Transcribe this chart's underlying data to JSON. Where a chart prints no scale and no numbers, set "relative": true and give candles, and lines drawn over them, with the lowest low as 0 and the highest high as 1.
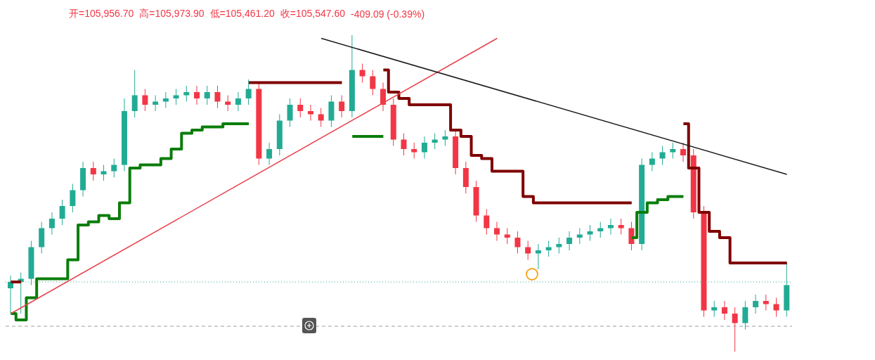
{
  "chart_data": {
    "type": "candlestick",
    "relative": true,
    "annotations": [
      "开=105,956.70",
      "高=105,973.90",
      "低=105,461.20",
      "收=105,547.60",
      "-409.09 (-0.39%)"
    ],
    "categories": [
      null,
      null,
      null,
      null,
      null,
      null,
      null,
      null,
      null,
      null,
      null,
      null,
      null,
      null,
      null,
      null,
      null,
      null,
      null,
      null,
      null,
      null,
      null,
      null,
      null,
      null,
      null,
      null,
      null,
      null,
      null,
      null,
      null,
      null,
      null,
      null,
      null,
      null,
      null,
      null,
      null,
      null,
      null,
      null,
      null,
      null,
      null,
      null,
      null,
      null,
      null,
      null,
      null,
      null,
      null,
      null,
      null,
      null,
      null,
      null,
      null,
      null,
      null,
      null,
      null,
      null,
      null,
      null,
      null,
      null,
      null,
      null,
      null,
      null,
      null,
      null
    ],
    "ohlc": [
      [
        0.2,
        0.24,
        0.12,
        0.22
      ],
      [
        0.22,
        0.25,
        0.12,
        0.23
      ],
      [
        0.23,
        0.35,
        0.21,
        0.33
      ],
      [
        0.33,
        0.41,
        0.31,
        0.39
      ],
      [
        0.39,
        0.44,
        0.37,
        0.42
      ],
      [
        0.42,
        0.48,
        0.4,
        0.46
      ],
      [
        0.46,
        0.53,
        0.44,
        0.51
      ],
      [
        0.51,
        0.6,
        0.49,
        0.58
      ],
      [
        0.58,
        0.6,
        0.54,
        0.56
      ],
      [
        0.56,
        0.59,
        0.54,
        0.57
      ],
      [
        0.57,
        0.61,
        0.55,
        0.59
      ],
      [
        0.59,
        0.8,
        0.57,
        0.76
      ],
      [
        0.76,
        0.89,
        0.74,
        0.81
      ],
      [
        0.81,
        0.83,
        0.76,
        0.78
      ],
      [
        0.78,
        0.81,
        0.76,
        0.79
      ],
      [
        0.79,
        0.82,
        0.77,
        0.8
      ],
      [
        0.8,
        0.83,
        0.78,
        0.81
      ],
      [
        0.81,
        0.84,
        0.79,
        0.82
      ],
      [
        0.82,
        0.84,
        0.78,
        0.8
      ],
      [
        0.8,
        0.84,
        0.78,
        0.82
      ],
      [
        0.82,
        0.84,
        0.77,
        0.79
      ],
      [
        0.79,
        0.81,
        0.76,
        0.78
      ],
      [
        0.78,
        0.82,
        0.76,
        0.8
      ],
      [
        0.8,
        0.86,
        0.78,
        0.83
      ],
      [
        0.83,
        0.85,
        0.59,
        0.61
      ],
      [
        0.61,
        0.66,
        0.59,
        0.64
      ],
      [
        0.64,
        0.75,
        0.62,
        0.73
      ],
      [
        0.73,
        0.8,
        0.71,
        0.78
      ],
      [
        0.78,
        0.8,
        0.74,
        0.76
      ],
      [
        0.76,
        0.78,
        0.73,
        0.75
      ],
      [
        0.75,
        0.77,
        0.71,
        0.73
      ],
      [
        0.73,
        0.81,
        0.71,
        0.79
      ],
      [
        0.79,
        0.81,
        0.74,
        0.76
      ],
      [
        0.76,
        1.0,
        0.74,
        0.89
      ],
      [
        0.89,
        0.91,
        0.85,
        0.87
      ],
      [
        0.87,
        0.89,
        0.81,
        0.83
      ],
      [
        0.83,
        0.85,
        0.76,
        0.78
      ],
      [
        0.78,
        0.8,
        0.65,
        0.67
      ],
      [
        0.67,
        0.69,
        0.62,
        0.64
      ],
      [
        0.64,
        0.66,
        0.61,
        0.63
      ],
      [
        0.63,
        0.68,
        0.61,
        0.66
      ],
      [
        0.66,
        0.69,
        0.64,
        0.67
      ],
      [
        0.67,
        0.7,
        0.65,
        0.68
      ],
      [
        0.68,
        0.7,
        0.56,
        0.58
      ],
      [
        0.58,
        0.6,
        0.5,
        0.52
      ],
      [
        0.52,
        0.54,
        0.41,
        0.43
      ],
      [
        0.43,
        0.45,
        0.37,
        0.39
      ],
      [
        0.39,
        0.41,
        0.35,
        0.37
      ],
      [
        0.37,
        0.39,
        0.34,
        0.36
      ],
      [
        0.36,
        0.38,
        0.31,
        0.33
      ],
      [
        0.33,
        0.35,
        0.29,
        0.31
      ],
      [
        0.31,
        0.34,
        0.26,
        0.32
      ],
      [
        0.32,
        0.35,
        0.3,
        0.33
      ],
      [
        0.33,
        0.36,
        0.31,
        0.34
      ],
      [
        0.34,
        0.38,
        0.32,
        0.36
      ],
      [
        0.36,
        0.39,
        0.34,
        0.37
      ],
      [
        0.37,
        0.4,
        0.35,
        0.38
      ],
      [
        0.38,
        0.41,
        0.36,
        0.39
      ],
      [
        0.39,
        0.42,
        0.37,
        0.4
      ],
      [
        0.4,
        0.42,
        0.37,
        0.39
      ],
      [
        0.39,
        0.41,
        0.32,
        0.34
      ],
      [
        0.34,
        0.61,
        0.32,
        0.59
      ],
      [
        0.59,
        0.63,
        0.57,
        0.61
      ],
      [
        0.61,
        0.65,
        0.59,
        0.63
      ],
      [
        0.63,
        0.66,
        0.61,
        0.64
      ],
      [
        0.64,
        0.66,
        0.6,
        0.62
      ],
      [
        0.62,
        0.64,
        0.42,
        0.44
      ],
      [
        0.44,
        0.46,
        0.11,
        0.13
      ],
      [
        0.13,
        0.16,
        0.11,
        0.14
      ],
      [
        0.14,
        0.16,
        0.1,
        0.12
      ],
      [
        0.12,
        0.14,
        0.0,
        0.09
      ],
      [
        0.09,
        0.16,
        0.07,
        0.14
      ],
      [
        0.14,
        0.18,
        0.12,
        0.16
      ],
      [
        0.16,
        0.18,
        0.13,
        0.15
      ],
      [
        0.15,
        0.17,
        0.11,
        0.13
      ],
      [
        0.13,
        0.28,
        0.11,
        0.21
      ]
    ],
    "colors": [
      "#22ab94",
      "#22ab94",
      "#22ab94",
      "#22ab94",
      "#22ab94",
      "#22ab94",
      "#22ab94",
      "#22ab94",
      "#f23645",
      "#22ab94",
      "#22ab94",
      "#22ab94",
      "#22ab94",
      "#f23645",
      "#22ab94",
      "#22ab94",
      "#22ab94",
      "#22ab94",
      "#f23645",
      "#22ab94",
      "#f23645",
      "#f23645",
      "#22ab94",
      "#22ab94",
      "#f23645",
      "#22ab94",
      "#22ab94",
      "#22ab94",
      "#f23645",
      "#f23645",
      "#f23645",
      "#22ab94",
      "#f23645",
      "#22ab94",
      "#f23645",
      "#f23645",
      "#f23645",
      "#f23645",
      "#f23645",
      "#f23645",
      "#22ab94",
      "#22ab94",
      "#22ab94",
      "#f23645",
      "#f23645",
      "#f23645",
      "#f23645",
      "#f23645",
      "#f23645",
      "#f23645",
      "#f23645",
      "#22ab94",
      "#22ab94",
      "#22ab94",
      "#22ab94",
      "#22ab94",
      "#22ab94",
      "#22ab94",
      "#22ab94",
      "#f23645",
      "#f23645",
      "#22ab94",
      "#22ab94",
      "#22ab94",
      "#22ab94",
      "#f23645",
      "#f23645",
      "#f23645",
      "#22ab94",
      "#f23645",
      "#f23645",
      "#22ab94",
      "#22ab94",
      "#f23645",
      "#f23645",
      "#22ab94"
    ],
    "series": [
      {
        "type": "step",
        "color": "#0a7d0a",
        "values": [
          0.12,
          0.1,
          0.17,
          0.23,
          0.23,
          0.23,
          0.29,
          0.4,
          0.41,
          0.43,
          0.42,
          0.47,
          0.58,
          0.59,
          0.59,
          0.61,
          0.64,
          0.69,
          0.7,
          0.71,
          0.71,
          0.72,
          0.72,
          0.72,
          null,
          null,
          null,
          null,
          null,
          null,
          null,
          null,
          null,
          0.68,
          0.68,
          0.68,
          0.68,
          null,
          null,
          null,
          null,
          null,
          null,
          null,
          null,
          null,
          null,
          null,
          null,
          null,
          null,
          null,
          null,
          null,
          null,
          null,
          null,
          null,
          null,
          null,
          0.36,
          0.44,
          0.47,
          0.48,
          0.49,
          0.49,
          null,
          null,
          null,
          null,
          null,
          null,
          null,
          null,
          null,
          null
        ]
      },
      {
        "type": "step",
        "color": "#7f0000",
        "values": [
          0.22,
          0.22,
          null,
          null,
          null,
          null,
          null,
          null,
          null,
          null,
          null,
          null,
          null,
          null,
          null,
          null,
          null,
          null,
          null,
          null,
          null,
          null,
          null,
          0.85,
          0.85,
          0.85,
          0.85,
          0.85,
          0.85,
          0.85,
          0.85,
          0.85,
          0.85,
          null,
          null,
          null,
          0.89,
          0.82,
          0.8,
          0.78,
          0.78,
          0.78,
          0.78,
          0.7,
          0.68,
          0.62,
          0.61,
          0.57,
          0.57,
          0.57,
          0.49,
          0.47,
          0.47,
          0.47,
          0.47,
          0.47,
          0.47,
          0.47,
          0.47,
          0.47,
          0.47,
          null,
          null,
          null,
          null,
          0.72,
          0.58,
          0.44,
          0.38,
          0.36,
          0.28,
          0.28,
          0.28,
          0.28,
          0.28,
          0.28
        ]
      },
      {
        "type": "line",
        "color": "#e8424d",
        "values": [
          0.12,
          null,
          null,
          null,
          null,
          null,
          null,
          null,
          null,
          null,
          null,
          null,
          null,
          null,
          null,
          null,
          null,
          null,
          null,
          null,
          null,
          null,
          null,
          null,
          null,
          null,
          null,
          null,
          null,
          null,
          null,
          null,
          null,
          null,
          null,
          null,
          null,
          null,
          null,
          null,
          null,
          null,
          null,
          null,
          null,
          null,
          null,
          0.99,
          null,
          null,
          null,
          null,
          null,
          null,
          null,
          null,
          null,
          null,
          null,
          null,
          null,
          null,
          null,
          null,
          null,
          null,
          null,
          null,
          null,
          null,
          null,
          null,
          null,
          null,
          null,
          null
        ]
      },
      {
        "type": "line",
        "color": "#1a1a1a",
        "values": [
          null,
          null,
          null,
          null,
          null,
          null,
          null,
          null,
          null,
          null,
          null,
          null,
          null,
          null,
          null,
          null,
          null,
          null,
          null,
          null,
          null,
          null,
          null,
          null,
          null,
          null,
          null,
          null,
          null,
          null,
          0.99,
          null,
          null,
          null,
          null,
          null,
          null,
          null,
          null,
          null,
          null,
          null,
          null,
          null,
          null,
          null,
          null,
          null,
          null,
          null,
          null,
          null,
          null,
          null,
          null,
          null,
          null,
          null,
          null,
          null,
          null,
          null,
          null,
          null,
          null,
          null,
          null,
          null,
          null,
          null,
          null,
          null,
          null,
          null,
          null,
          0.56
        ]
      }
    ],
    "ref_lines": [
      {
        "axis": "y",
        "value": 0.22,
        "color": "#26a69a",
        "line_style": "dotted"
      },
      {
        "axis": "y",
        "value": 0.08,
        "color": "#9e9e9e",
        "line_style": "dashed"
      }
    ]
  }
}
